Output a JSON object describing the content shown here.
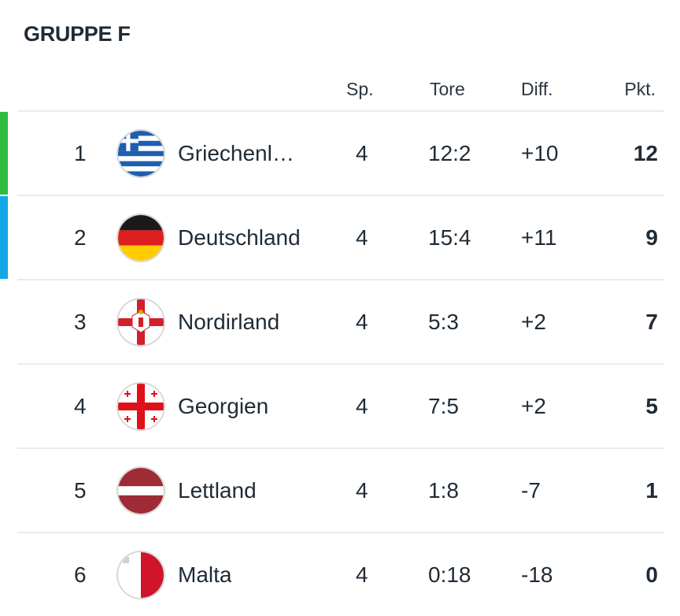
{
  "group": {
    "title": "GRUPPE F"
  },
  "headers": {
    "sp": "Sp.",
    "tore": "Tore",
    "diff": "Diff.",
    "pkt": "Pkt."
  },
  "rows": [
    {
      "pos": "1",
      "team": "Griechenl…",
      "flag": "greece-flag-icon",
      "sp": "4",
      "tore": "12:2",
      "diff": "+10",
      "pkt": "12",
      "marker_color": "#2ebd3f"
    },
    {
      "pos": "2",
      "team": "Deutschland",
      "flag": "germany-flag-icon",
      "sp": "4",
      "tore": "15:4",
      "diff": "+11",
      "pkt": "9",
      "marker_color": "#14a7e8"
    },
    {
      "pos": "3",
      "team": "Nordirland",
      "flag": "northern-ireland-flag-icon",
      "sp": "4",
      "tore": "5:3",
      "diff": "+2",
      "pkt": "7"
    },
    {
      "pos": "4",
      "team": "Georgien",
      "flag": "georgia-flag-icon",
      "sp": "4",
      "tore": "7:5",
      "diff": "+2",
      "pkt": "5"
    },
    {
      "pos": "5",
      "team": "Lettland",
      "flag": "latvia-flag-icon",
      "sp": "4",
      "tore": "1:8",
      "diff": "-7",
      "pkt": "1"
    },
    {
      "pos": "6",
      "team": "Malta",
      "flag": "malta-flag-icon",
      "sp": "4",
      "tore": "0:18",
      "diff": "-18",
      "pkt": "0"
    }
  ]
}
